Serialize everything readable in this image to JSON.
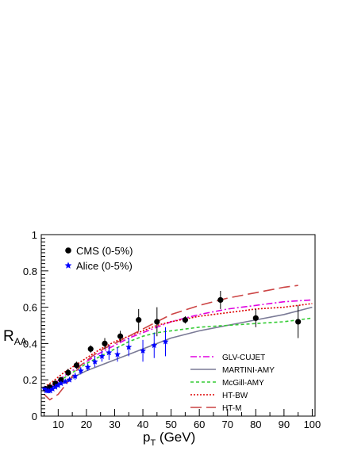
{
  "chart_data": {
    "type": "scatter",
    "title": "",
    "ylabel": {
      "main": "R",
      "sub": "AA"
    },
    "xlabel": {
      "main": "p",
      "sub": "T",
      "unit": " (GeV)"
    },
    "xlim": [
      4,
      101
    ],
    "ylim": [
      0,
      1
    ],
    "x_ticks": [
      10,
      20,
      30,
      40,
      50,
      60,
      70,
      80,
      90,
      100
    ],
    "y_ticks": [
      0,
      0.2,
      0.4,
      0.6,
      0.8,
      1
    ],
    "y_tick_labels": [
      "0",
      "0.2",
      "0.4",
      "0.6",
      "0.8",
      "1"
    ],
    "grid": false,
    "legend_markers": {
      "position": "top-left",
      "entries": [
        {
          "label": "CMS (0-5%)",
          "marker": "circle",
          "color": "#000000"
        },
        {
          "label": "Alice (0-5%)",
          "marker": "star",
          "color": "#0000ff"
        }
      ]
    },
    "legend_curves": {
      "position": "bottom-right",
      "entries": [
        {
          "label": "GLV-CUJET",
          "color": "#e000e0",
          "dash": "8,3,2,3"
        },
        {
          "label": "MARTINI-AMY",
          "color": "#7a7a96",
          "dash": ""
        },
        {
          "label": "McGill-AMY",
          "color": "#33cc33",
          "dash": "4,3"
        },
        {
          "label": "HT-BW",
          "color": "#dd0000",
          "dash": "2,2"
        },
        {
          "label": "HT-M",
          "color": "#cc4444",
          "dash": "14,6"
        }
      ]
    },
    "points": [
      {
        "name": "CMS (0-5%)",
        "marker": "circle",
        "color": "#000000",
        "x": [
          5.5,
          7,
          9,
          11,
          13.5,
          16.5,
          21.5,
          26.5,
          32,
          38.5,
          45,
          55,
          67.5,
          80,
          95
        ],
        "y": [
          0.15,
          0.16,
          0.18,
          0.2,
          0.24,
          0.28,
          0.37,
          0.4,
          0.44,
          0.53,
          0.52,
          0.53,
          0.64,
          0.54,
          0.52
        ],
        "err": [
          0.01,
          0.01,
          0.01,
          0.01,
          0.02,
          0.02,
          0.02,
          0.03,
          0.03,
          0.06,
          0.08,
          0.02,
          0.05,
          0.05,
          0.09
        ]
      },
      {
        "name": "Alice (0-5%)",
        "marker": "star",
        "color": "#0000ff",
        "x": [
          5.2,
          5.8,
          6.5,
          7.2,
          8,
          9,
          10,
          11,
          12.5,
          14,
          16,
          18,
          20.5,
          23,
          25.5,
          28,
          31,
          35,
          40,
          44,
          48
        ],
        "y": [
          0.15,
          0.14,
          0.14,
          0.14,
          0.15,
          0.16,
          0.17,
          0.18,
          0.19,
          0.2,
          0.22,
          0.25,
          0.27,
          0.3,
          0.33,
          0.35,
          0.34,
          0.38,
          0.36,
          0.39,
          0.41
        ],
        "err": [
          0.01,
          0.01,
          0.01,
          0.01,
          0.01,
          0.01,
          0.01,
          0.01,
          0.01,
          0.01,
          0.02,
          0.02,
          0.02,
          0.03,
          0.03,
          0.04,
          0.04,
          0.05,
          0.06,
          0.07,
          0.08
        ]
      }
    ],
    "curves": [
      {
        "name": "GLV-CUJET",
        "color": "#e000e0",
        "dash": "8,3,2,3",
        "x": [
          5,
          8,
          12,
          16,
          20,
          25,
          30,
          35,
          40,
          45,
          50,
          60,
          70,
          80,
          90,
          100
        ],
        "y": [
          0.15,
          0.17,
          0.22,
          0.26,
          0.3,
          0.35,
          0.39,
          0.43,
          0.46,
          0.49,
          0.52,
          0.56,
          0.59,
          0.61,
          0.63,
          0.64
        ]
      },
      {
        "name": "MARTINI-AMY",
        "color": "#7a7a96",
        "dash": "",
        "x": [
          5,
          8,
          12,
          16,
          20,
          25,
          30,
          35,
          40,
          45,
          50,
          60,
          70,
          80,
          90,
          100
        ],
        "y": [
          0.15,
          0.16,
          0.19,
          0.22,
          0.25,
          0.28,
          0.31,
          0.34,
          0.37,
          0.4,
          0.43,
          0.47,
          0.5,
          0.53,
          0.56,
          0.6
        ]
      },
      {
        "name": "McGill-AMY",
        "color": "#33cc33",
        "dash": "4,3",
        "x": [
          5,
          8,
          12,
          16,
          20,
          25,
          30,
          35,
          40,
          45,
          50,
          60,
          70,
          80,
          90,
          100
        ],
        "y": [
          0.15,
          0.17,
          0.21,
          0.25,
          0.29,
          0.33,
          0.37,
          0.41,
          0.44,
          0.46,
          0.47,
          0.49,
          0.5,
          0.51,
          0.52,
          0.54
        ]
      },
      {
        "name": "HT-BW",
        "color": "#dd0000",
        "dash": "2,2",
        "x": [
          5,
          8,
          12,
          16,
          20,
          25,
          30,
          35,
          40,
          45,
          50,
          60,
          70,
          80,
          90,
          100
        ],
        "y": [
          0.16,
          0.19,
          0.24,
          0.28,
          0.32,
          0.37,
          0.41,
          0.44,
          0.47,
          0.5,
          0.52,
          0.55,
          0.57,
          0.59,
          0.6,
          0.62
        ]
      },
      {
        "name": "HT-M",
        "color": "#cc4444",
        "dash": "14,6",
        "x": [
          5,
          7,
          10,
          12,
          15,
          18,
          22,
          26,
          30,
          35,
          40,
          45,
          50,
          60,
          70,
          80,
          90,
          95
        ],
        "y": [
          0.12,
          0.09,
          0.12,
          0.16,
          0.22,
          0.28,
          0.33,
          0.37,
          0.4,
          0.44,
          0.48,
          0.52,
          0.56,
          0.61,
          0.65,
          0.68,
          0.71,
          0.72
        ]
      }
    ]
  }
}
